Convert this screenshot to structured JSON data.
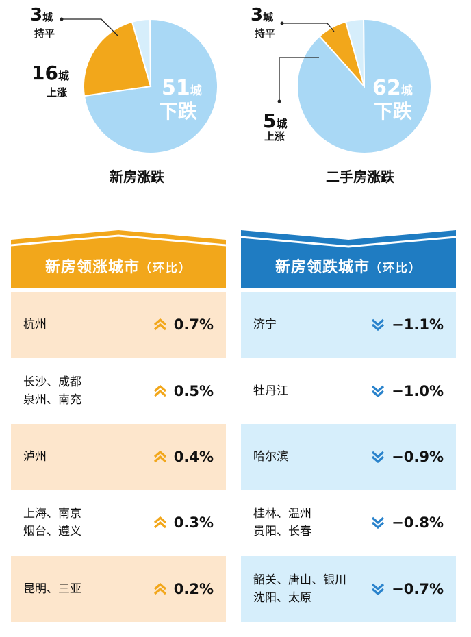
{
  "chart_data": [
    {
      "type": "pie",
      "title": "新房涨跌",
      "slices": [
        {
          "count": "51",
          "unit": "城",
          "label": "下跌",
          "value": 51,
          "color": "#a9d8f5"
        },
        {
          "count": "16",
          "unit": "城",
          "label": "上涨",
          "value": 16,
          "color": "#f2a71b"
        },
        {
          "count": "3",
          "unit": "城",
          "label": "持平",
          "value": 3,
          "color": "#d6eefb"
        }
      ]
    },
    {
      "type": "pie",
      "title": "二手房涨跌",
      "slices": [
        {
          "count": "62",
          "unit": "城",
          "label": "下跌",
          "value": 62,
          "color": "#a9d8f5"
        },
        {
          "count": "5",
          "unit": "城",
          "label": "上涨",
          "value": 5,
          "color": "#f2a71b"
        },
        {
          "count": "3",
          "unit": "城",
          "label": "持平",
          "value": 3,
          "color": "#d6eefb"
        }
      ]
    },
    {
      "type": "table",
      "title": "新房领涨城市",
      "subtitle": "（环比）",
      "rows": [
        {
          "cities": [
            "杭州"
          ],
          "value": "0.7%"
        },
        {
          "cities": [
            "长沙、成都",
            "泉州、南充"
          ],
          "value": "0.5%"
        },
        {
          "cities": [
            "泸州"
          ],
          "value": "0.4%"
        },
        {
          "cities": [
            "上海、南京",
            "烟台、遵义"
          ],
          "value": "0.3%"
        },
        {
          "cities": [
            "昆明、三亚"
          ],
          "value": "0.2%"
        }
      ]
    },
    {
      "type": "table",
      "title": "新房领跌城市",
      "subtitle": "（环比）",
      "rows": [
        {
          "cities": [
            "济宁"
          ],
          "value": "−1.1%"
        },
        {
          "cities": [
            "牡丹江"
          ],
          "value": "−1.0%"
        },
        {
          "cities": [
            "哈尔滨"
          ],
          "value": "−0.9%"
        },
        {
          "cities": [
            "桂林、温州",
            "贵阳、长春"
          ],
          "value": "−0.8%"
        },
        {
          "cities": [
            "韶关、唐山、银川",
            "沈阳、太原"
          ],
          "value": "−0.7%"
        }
      ]
    }
  ],
  "colors": {
    "rise": "#f2a71b",
    "rise_row": "#fde6cc",
    "fall": "#1f7cc2",
    "fall_row": "#d6eefb",
    "fall_pie": "#a9d8f5",
    "flat_pie": "#d6eefb",
    "fall_arrow": "#2a83cc"
  }
}
